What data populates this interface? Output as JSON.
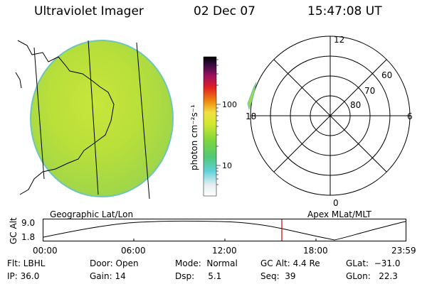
{
  "header": {
    "instrument": "Ultraviolet Imager",
    "date": "02 Dec 07",
    "time": "15:47:08 UT"
  },
  "colorbar": {
    "unit_label": "photon cm⁻²s⁻¹",
    "ticks": [
      "100",
      "10"
    ]
  },
  "polar_plot": {
    "mlt_labels": [
      "12",
      "18",
      "6",
      "0"
    ],
    "lat_labels": [
      "60",
      "70",
      "80"
    ]
  },
  "panels": {
    "left_title": "Geographic Lat/Lon",
    "right_title": "Apex MLat/MLT"
  },
  "altitude_plot": {
    "ylabel": "GC Alt",
    "yticks": [
      "9.0",
      "1.8"
    ],
    "xticks": [
      "00:00",
      "06:00",
      "12:00",
      "18:00",
      "23:59"
    ],
    "marker_color": "#cc0000"
  },
  "footer": {
    "row1": {
      "flt": "Flt: LBHL",
      "door": "Door: Open",
      "mode": "Mode:  Normal",
      "gcalt": "GC Alt: 4.4 Re",
      "glat": "GLat:  −31.0"
    },
    "row2": {
      "ip": "IP: 36.0",
      "gain": "Gain: 14",
      "dsp": "Dsp:     5.1",
      "seq": "Seq:  39",
      "glon": "GLon:   22.3"
    }
  }
}
